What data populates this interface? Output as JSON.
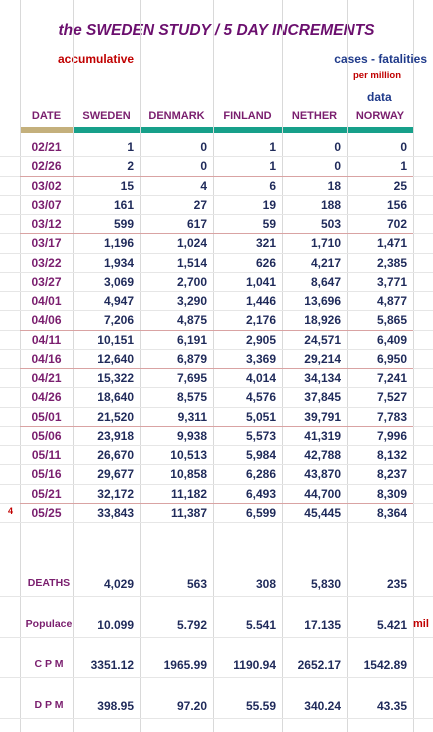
{
  "title": "the SWEDEN STUDY / 5 DAY INCREMENTS",
  "subtitle_left": "accumulative",
  "subtitle_right": "cases - fatalities",
  "per_million": "per million",
  "data_label": "data",
  "columns": [
    "DATE",
    "SWEDEN",
    "DENMARK",
    "FINLAND",
    "NETHER",
    "NORWAY"
  ],
  "rows": [
    {
      "date": "02/21",
      "values": [
        "1",
        "0",
        "1",
        "0",
        "0"
      ]
    },
    {
      "date": "02/26",
      "values": [
        "2",
        "0",
        "1",
        "0",
        "1"
      ]
    },
    {
      "date": "03/02",
      "values": [
        "15",
        "4",
        "6",
        "18",
        "25"
      ]
    },
    {
      "date": "03/07",
      "values": [
        "161",
        "27",
        "19",
        "188",
        "156"
      ]
    },
    {
      "date": "03/12",
      "values": [
        "599",
        "617",
        "59",
        "503",
        "702"
      ]
    },
    {
      "date": "03/17",
      "values": [
        "1,196",
        "1,024",
        "321",
        "1,710",
        "1,471"
      ]
    },
    {
      "date": "03/22",
      "values": [
        "1,934",
        "1,514",
        "626",
        "4,217",
        "2,385"
      ]
    },
    {
      "date": "03/27",
      "values": [
        "3,069",
        "2,700",
        "1,041",
        "8,647",
        "3,771"
      ]
    },
    {
      "date": "04/01",
      "values": [
        "4,947",
        "3,290",
        "1,446",
        "13,696",
        "4,877"
      ]
    },
    {
      "date": "04/06",
      "values": [
        "7,206",
        "4,875",
        "2,176",
        "18,926",
        "5,865"
      ]
    },
    {
      "date": "04/11",
      "values": [
        "10,151",
        "6,191",
        "2,905",
        "24,571",
        "6,409"
      ]
    },
    {
      "date": "04/16",
      "values": [
        "12,640",
        "6,879",
        "3,369",
        "29,214",
        "6,950"
      ]
    },
    {
      "date": "04/21",
      "values": [
        "15,322",
        "7,695",
        "4,014",
        "34,134",
        "7,241"
      ]
    },
    {
      "date": "04/26",
      "values": [
        "18,640",
        "8,575",
        "4,576",
        "37,845",
        "7,527"
      ]
    },
    {
      "date": "05/01",
      "values": [
        "21,520",
        "9,311",
        "5,051",
        "39,791",
        "7,783"
      ]
    },
    {
      "date": "05/06",
      "values": [
        "23,918",
        "9,938",
        "5,573",
        "41,319",
        "7,996"
      ]
    },
    {
      "date": "05/11",
      "values": [
        "26,670",
        "10,513",
        "5,984",
        "42,788",
        "8,132"
      ]
    },
    {
      "date": "05/16",
      "values": [
        "29,677",
        "10,858",
        "6,286",
        "43,870",
        "8,237"
      ]
    },
    {
      "date": "05/21",
      "values": [
        "32,172",
        "11,182",
        "6,493",
        "44,700",
        "8,309"
      ]
    },
    {
      "date": "05/25",
      "values": [
        "33,843",
        "11,387",
        "6,599",
        "45,445",
        "8,364"
      ]
    }
  ],
  "row_marker": "4",
  "summary": [
    {
      "label": "DEATHS",
      "values": [
        "4,029",
        "563",
        "308",
        "5,830",
        "235"
      ]
    },
    {
      "label": "Populace",
      "values": [
        "10.099",
        "5.792",
        "5.541",
        "17.135",
        "5.421"
      ],
      "unit": "mil"
    },
    {
      "label": "C P M",
      "values": [
        "3351.12",
        "1965.99",
        "1190.94",
        "2652.17",
        "1542.89"
      ]
    },
    {
      "label": "D P M",
      "values": [
        "398.95",
        "97.20",
        "55.59",
        "340.24",
        "43.35"
      ]
    }
  ],
  "colors": {
    "date_bar": "#c4b07c",
    "header_bar": "#17a08a",
    "title": "#6b0f6e",
    "numbers": "#1f2a5a"
  }
}
